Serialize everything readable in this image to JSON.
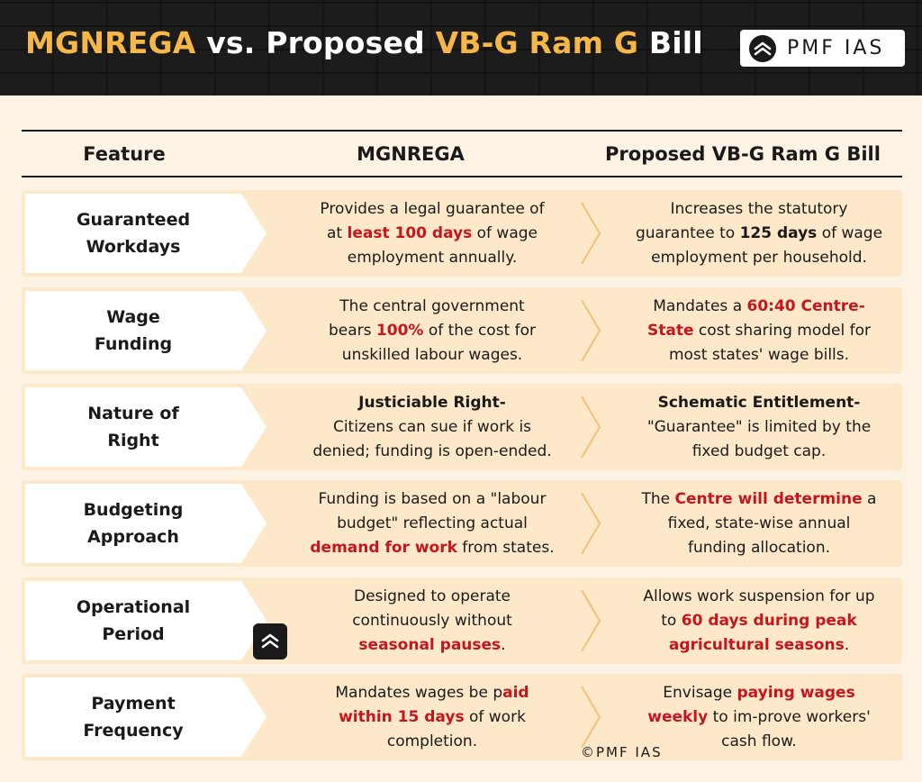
{
  "header": {
    "title_part1": "MGNREGA",
    "title_part2": " vs. Proposed ",
    "title_part3": "VB-G Ram G",
    "title_part4": " Bill",
    "logo_text": "PMF IAS"
  },
  "columns": {
    "feature": "Feature",
    "mgnrega": "MGNREGA",
    "vbg": "Proposed VB-G Ram G Bill"
  },
  "rows": [
    {
      "feature_line1": "Guaranteed",
      "feature_line2": "Workdays",
      "mg": [
        {
          "t": "Provides a legal guarantee of"
        },
        {
          "t": "at "
        },
        {
          "t": "least 100 days",
          "s": "red"
        },
        {
          "t": " of wage"
        },
        {
          "t": "employment annually."
        }
      ],
      "mg_lines": [
        [
          0
        ],
        [
          1,
          2,
          3
        ],
        [
          4
        ]
      ],
      "vb": [
        {
          "t": "Increases the statutory"
        },
        {
          "t": "guarantee to "
        },
        {
          "t": "125 days",
          "s": "bold"
        },
        {
          "t": " of wage"
        },
        {
          "t": "employment per household."
        }
      ],
      "vb_lines": [
        [
          0
        ],
        [
          1,
          2,
          3
        ],
        [
          4
        ]
      ]
    },
    {
      "feature_line1": "Wage",
      "feature_line2": "Funding",
      "mg": [
        {
          "t": "The central government"
        },
        {
          "t": "bears "
        },
        {
          "t": "100%",
          "s": "red"
        },
        {
          "t": " of the cost for"
        },
        {
          "t": "unskilled labour wages."
        }
      ],
      "mg_lines": [
        [
          0
        ],
        [
          1,
          2,
          3
        ],
        [
          4
        ]
      ],
      "vb": [
        {
          "t": "Mandates a "
        },
        {
          "t": "60:40 Centre-",
          "s": "red"
        },
        {
          "t": "State",
          "s": "red"
        },
        {
          "t": " cost sharing model for"
        },
        {
          "t": "most states' wage bills."
        }
      ],
      "vb_lines": [
        [
          0,
          1
        ],
        [
          2,
          3
        ],
        [
          4
        ]
      ]
    },
    {
      "feature_line1": "Nature of",
      "feature_line2": "Right",
      "mg": [
        {
          "t": "Justiciable Right-",
          "s": "bold"
        },
        {
          "t": "Citizens can sue if work is"
        },
        {
          "t": "denied; funding is open-ended."
        }
      ],
      "mg_lines": [
        [
          0
        ],
        [
          1
        ],
        [
          2
        ]
      ],
      "vb": [
        {
          "t": "Schematic Entitlement-",
          "s": "bold"
        },
        {
          "t": "\"Guarantee\" is limited by the"
        },
        {
          "t": "fixed budget cap."
        }
      ],
      "vb_lines": [
        [
          0
        ],
        [
          1
        ],
        [
          2
        ]
      ]
    },
    {
      "feature_line1": "Budgeting",
      "feature_line2": "Approach",
      "mg": [
        {
          "t": "Funding is based on a \"labour"
        },
        {
          "t": "budget\" reflecting actual"
        },
        {
          "t": "demand for work",
          "s": "red"
        },
        {
          "t": " from states."
        }
      ],
      "mg_lines": [
        [
          0
        ],
        [
          1
        ],
        [
          2,
          3
        ]
      ],
      "vb": [
        {
          "t": "The "
        },
        {
          "t": "Centre will determine",
          "s": "red"
        },
        {
          "t": " a"
        },
        {
          "t": "fixed, state-wise annual"
        },
        {
          "t": "funding allocation."
        }
      ],
      "vb_lines": [
        [
          0,
          1,
          2
        ],
        [
          3
        ],
        [
          4
        ]
      ]
    },
    {
      "feature_line1": "Operational",
      "feature_line2": "Period",
      "mg": [
        {
          "t": "Designed to operate"
        },
        {
          "t": "continuously without"
        },
        {
          "t": "seasonal pauses",
          "s": "red"
        },
        {
          "t": "."
        }
      ],
      "mg_lines": [
        [
          0
        ],
        [
          1
        ],
        [
          2,
          3
        ]
      ],
      "vb": [
        {
          "t": "Allows work suspension for up"
        },
        {
          "t": "to "
        },
        {
          "t": "60 days during peak",
          "s": "red"
        },
        {
          "t": "agricultural seasons",
          "s": "red"
        },
        {
          "t": "."
        }
      ],
      "vb_lines": [
        [
          0
        ],
        [
          1,
          2
        ],
        [
          3,
          4
        ]
      ]
    },
    {
      "feature_line1": "Payment",
      "feature_line2": "Frequency",
      "mg": [
        {
          "t": "Mandates wages be p"
        },
        {
          "t": "aid",
          "s": "red"
        },
        {
          "t": "within 15 days",
          "s": "red"
        },
        {
          "t": " of work"
        },
        {
          "t": "completion."
        }
      ],
      "mg_lines": [
        [
          0,
          1
        ],
        [
          2,
          3
        ],
        [
          4
        ]
      ],
      "vb": [
        {
          "t": "Envisage "
        },
        {
          "t": "paying wages",
          "s": "red"
        },
        {
          "t": "weekly",
          "s": "red"
        },
        {
          "t": " to im-prove workers'"
        },
        {
          "t": "cash flow."
        }
      ],
      "vb_lines": [
        [
          0,
          1
        ],
        [
          2,
          3
        ],
        [
          4
        ]
      ]
    }
  ],
  "footer": {
    "copyright": "©PMF IAS"
  }
}
